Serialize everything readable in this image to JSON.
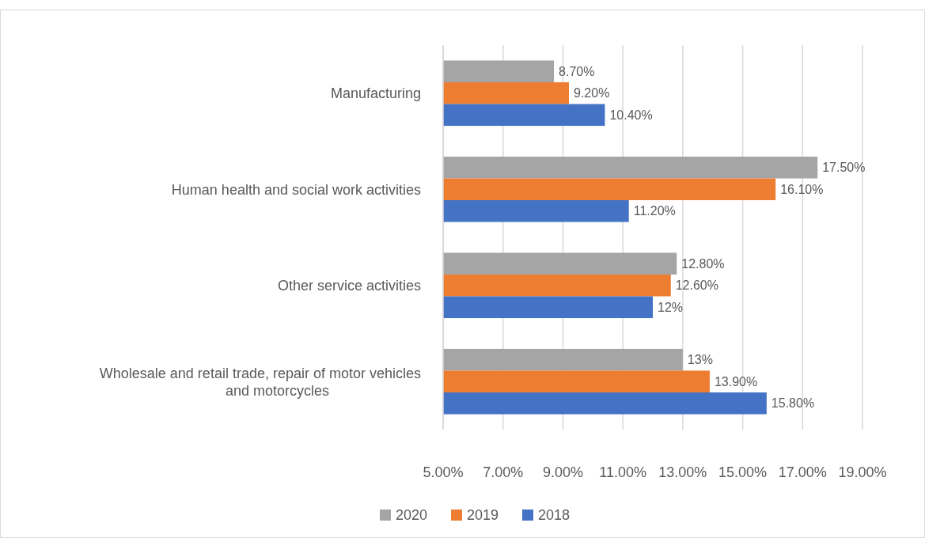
{
  "chart_data": {
    "type": "bar",
    "orientation": "horizontal",
    "categories": [
      "Manufacturing",
      "Human health and social work activities",
      "Other service activities",
      "Wholesale and retail trade, repair of motor vehicles and motorcycles"
    ],
    "series": [
      {
        "name": "2020",
        "color": "#a5a5a5",
        "values": [
          8.7,
          17.5,
          12.8,
          13
        ],
        "value_labels": [
          "8.70%",
          "17.50%",
          "12.80%",
          "13%"
        ]
      },
      {
        "name": "2019",
        "color": "#ed7d31",
        "values": [
          9.2,
          16.1,
          12.6,
          13.9
        ],
        "value_labels": [
          "9.20%",
          "16.10%",
          "12.60%",
          "13.90%"
        ]
      },
      {
        "name": "2018",
        "color": "#4472c4",
        "values": [
          10.4,
          11.2,
          12,
          15.8
        ],
        "value_labels": [
          "10.40%",
          "11.20%",
          "12%",
          "15.80%"
        ]
      }
    ],
    "xlim": [
      5,
      19
    ],
    "xticks": [
      {
        "value": 5,
        "label": "5.00%"
      },
      {
        "value": 7,
        "label": "7.00%"
      },
      {
        "value": 9,
        "label": "9.00%"
      },
      {
        "value": 11,
        "label": "11.00%"
      },
      {
        "value": 13,
        "label": "13.00%"
      },
      {
        "value": 15,
        "label": "15.00%"
      },
      {
        "value": 17,
        "label": "17.00%"
      },
      {
        "value": 19,
        "label": "19.00%"
      }
    ],
    "grid": "x",
    "legend": "bottom"
  }
}
